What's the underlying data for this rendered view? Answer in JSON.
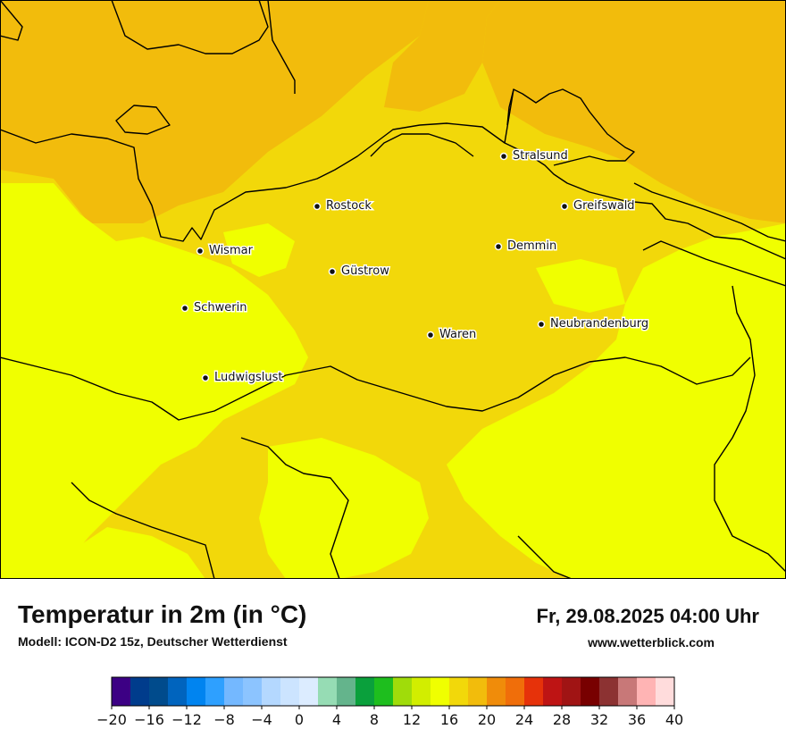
{
  "title": "Temperatur in 2m (in °C)",
  "subtitle": "Modell: ICON-D2 15z, Deutscher Wetterdienst",
  "datetime": "Fr, 29.08.2025 04:00 Uhr",
  "website": "www.wetterblick.com",
  "cities": [
    {
      "name": "Stralsund"
    },
    {
      "name": "Rostock"
    },
    {
      "name": "Greifswald"
    },
    {
      "name": "Wismar"
    },
    {
      "name": "Demmin"
    },
    {
      "name": "Güstrow"
    },
    {
      "name": "Schwerin"
    },
    {
      "name": "Neubrandenburg"
    },
    {
      "name": "Waren"
    },
    {
      "name": "Ludwigslust"
    }
  ],
  "colors": {
    "temp_14_16": "#f0ff00",
    "temp_16_18": "#f2d80a",
    "temp_18_20": "#f2bc0c"
  },
  "colorbar": {
    "unit": "°C",
    "min": -20,
    "max": 40,
    "step": 2,
    "tick_labels": [
      "−20",
      "−16",
      "−12",
      "−8",
      "−4",
      "0",
      "4",
      "8",
      "12",
      "16",
      "20",
      "24",
      "28",
      "32",
      "36",
      "40"
    ],
    "colors": [
      "#3c0084",
      "#003c8c",
      "#004b8c",
      "#0064be",
      "#0084f0",
      "#2ea0ff",
      "#74b8ff",
      "#8cc4ff",
      "#b4d8ff",
      "#cce4ff",
      "#dcecff",
      "#96dcb4",
      "#64b48c",
      "#0aa03c",
      "#1ebe1e",
      "#a0dc0a",
      "#d2ee00",
      "#f0ff00",
      "#f2d80a",
      "#f2bc0c",
      "#f08c0a",
      "#f06e0a",
      "#e6320a",
      "#be1414",
      "#a01414",
      "#780000",
      "#8c3232",
      "#c87878",
      "#ffb4b4",
      "#ffdcdc"
    ]
  }
}
